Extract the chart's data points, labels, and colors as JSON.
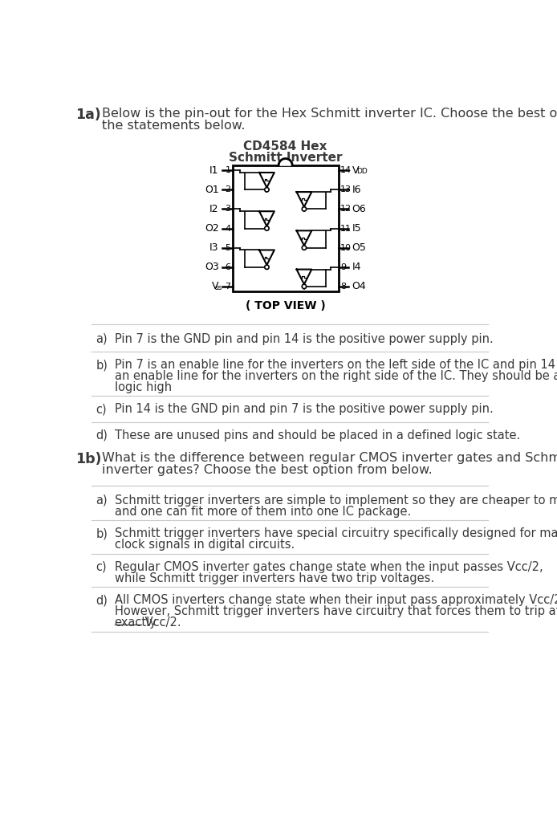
{
  "bg_color": "#ffffff",
  "left_pins": [
    {
      "num": "1",
      "label": "I1"
    },
    {
      "num": "2",
      "label": "O1"
    },
    {
      "num": "3",
      "label": "I2"
    },
    {
      "num": "4",
      "label": "O2"
    },
    {
      "num": "5",
      "label": "I3"
    },
    {
      "num": "6",
      "label": "O3"
    },
    {
      "num": "7",
      "label": "Vss"
    }
  ],
  "right_pins": [
    {
      "num": "14",
      "label": "VDD"
    },
    {
      "num": "13",
      "label": "I6"
    },
    {
      "num": "12",
      "label": "O6"
    },
    {
      "num": "11",
      "label": "I5"
    },
    {
      "num": "10",
      "label": "O5"
    },
    {
      "num": "9",
      "label": "I4"
    },
    {
      "num": "8",
      "label": "O4"
    }
  ]
}
